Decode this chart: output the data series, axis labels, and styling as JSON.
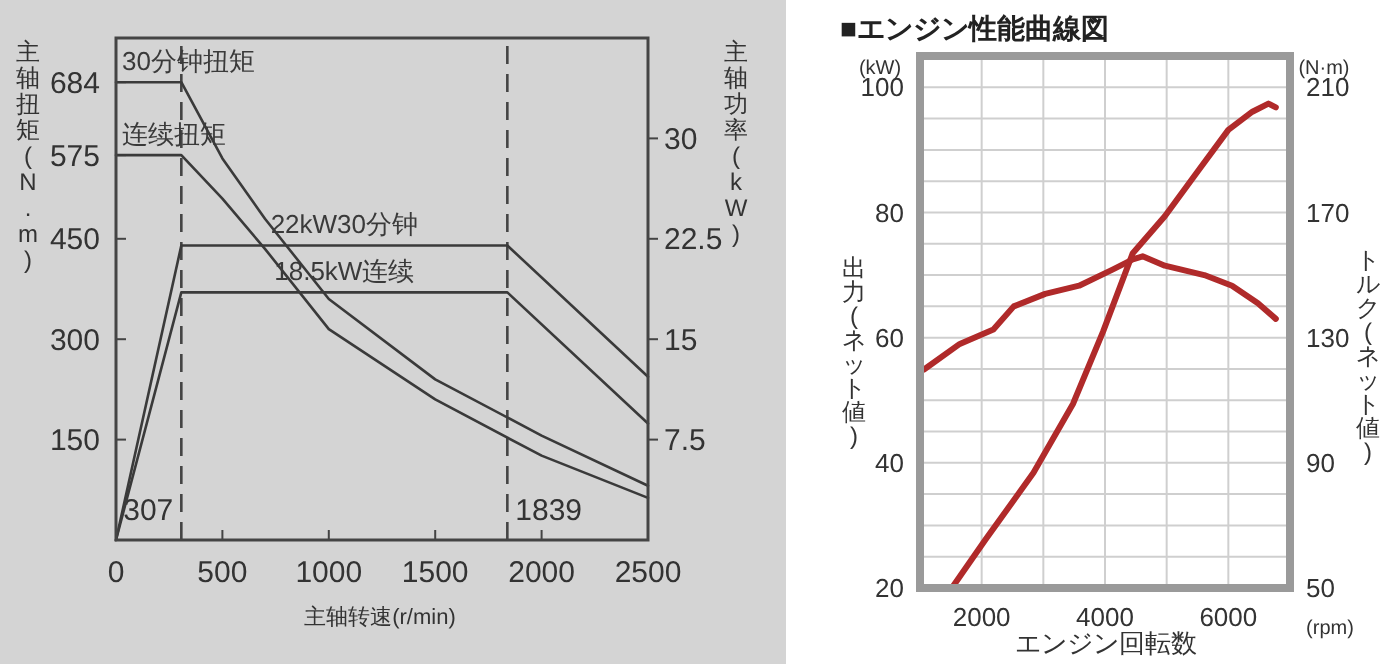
{
  "chart_data": [
    {
      "type": "line",
      "xlabel": "主轴转速(r/min)",
      "ylabel": "主轴扭矩(N.m)",
      "y2label": "主轴功率(kW)",
      "xlim": [
        0,
        2500
      ],
      "xticks": [
        0,
        500,
        1000,
        1500,
        2000,
        2500
      ],
      "ylim": [
        0,
        750
      ],
      "yticks": [
        150,
        300,
        450,
        575,
        684
      ],
      "y2lim": [
        0,
        37.5
      ],
      "y2ticks": [
        7.5,
        15,
        22.5,
        30
      ],
      "grid": false,
      "ref_lines": [
        {
          "axis": "x",
          "value": 307,
          "label": "307",
          "line_style": "dashed"
        },
        {
          "axis": "x",
          "value": 1839,
          "label": "1839",
          "line_style": "dashed"
        }
      ],
      "series": [
        {
          "name": "30分钟扭矩",
          "color": "#3a3a3a",
          "x": [
            0,
            307,
            500,
            700,
            1000,
            1500,
            2000,
            2500
          ],
          "values": [
            684,
            684,
            570,
            480,
            360,
            240,
            156,
            81
          ]
        },
        {
          "name": "连续扭矩",
          "color": "#3a3a3a",
          "x": [
            0,
            307,
            500,
            700,
            1000,
            1500,
            2000,
            2500
          ],
          "values": [
            575,
            575,
            510,
            435,
            315,
            210,
            126,
            63
          ]
        },
        {
          "name": "22kW30分钟",
          "color": "#3a3a3a",
          "axis": "y2",
          "x": [
            0,
            307,
            1839,
            2500
          ],
          "values": [
            0,
            22,
            22,
            12.2
          ]
        },
        {
          "name": "18.5kW连续",
          "color": "#3a3a3a",
          "axis": "y2",
          "x": [
            0,
            307,
            1839,
            2500
          ],
          "values": [
            0,
            18.5,
            18.5,
            8.7
          ]
        }
      ]
    },
    {
      "type": "line",
      "title": "■エンジン性能曲線図",
      "xlabel": "エンジン回転数",
      "ylabel": "出力(ネット値)",
      "y2label": "トルク(ネット値)",
      "annotations": [
        "(kW)",
        "(N·m)",
        "(rpm)"
      ],
      "xlim": [
        1000,
        7000
      ],
      "xticks": [
        {
          "value": 1000,
          "label": null
        },
        2000,
        {
          "value": 3000,
          "label": null
        },
        4000,
        {
          "value": 5000,
          "label": null
        },
        6000,
        {
          "value": 7000,
          "label": null
        }
      ],
      "ylim": [
        20,
        105
      ],
      "yticks": [
        20,
        {
          "value": 25,
          "label": null
        },
        {
          "value": 30,
          "label": null
        },
        {
          "value": 35,
          "label": null
        },
        40,
        {
          "value": 45,
          "label": null
        },
        {
          "value": 50,
          "label": null
        },
        {
          "value": 55,
          "label": null
        },
        60,
        {
          "value": 65,
          "label": null
        },
        {
          "value": 70,
          "label": null
        },
        {
          "value": 75,
          "label": null
        },
        80,
        {
          "value": 85,
          "label": null
        },
        {
          "value": 90,
          "label": null
        },
        {
          "value": 95,
          "label": null
        },
        100
      ],
      "y2lim": [
        50,
        220
      ],
      "y2ticks": [
        50,
        90,
        130,
        170,
        210
      ],
      "grid": true,
      "series": [
        {
          "color": "#b02a2a",
          "x": [
            1516,
            2060,
            2840,
            3480,
            3970,
            4450,
            4970,
            5520,
            6000,
            6390,
            6650,
            6770
          ],
          "values": [
            20,
            27.7,
            38.4,
            49.4,
            61,
            73.5,
            79.4,
            86.8,
            93.2,
            96.1,
            97.4,
            96.8
          ]
        },
        {
          "color": "#b02a2a",
          "axis": "y2",
          "x": [
            1065,
            1645,
            2190,
            2520,
            3030,
            3580,
            4130,
            4450,
            4610,
            4970,
            5610,
            6060,
            6480,
            6770
          ],
          "values": [
            119.8,
            128,
            132.6,
            140,
            144,
            146.6,
            151.8,
            155,
            156,
            153,
            150,
            146.6,
            141,
            136
          ]
        }
      ]
    }
  ]
}
